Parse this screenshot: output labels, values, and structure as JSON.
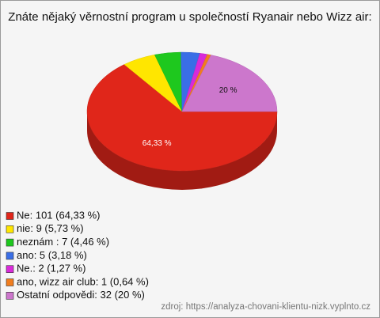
{
  "chart_data": {
    "type": "pie",
    "title": "Znáte nějaký věrnostní program u společností Ryanair nebo Wizz air:",
    "categories": [
      "Ne: 101 (64,33 %)",
      "nie: 9 (5,73 %)",
      "neznám : 7 (4,46 %)",
      "ano: 5 (3,18 %)",
      "Ne.: 2 (1,27 %)",
      "ano, wizz air club: 1 (0,64 %)",
      "Ostatní odpovědi: 32 (20 %)"
    ],
    "values": [
      64.33,
      5.73,
      4.46,
      3.18,
      1.27,
      0.64,
      20
    ],
    "value_labels": [
      "64,33 %",
      null,
      null,
      null,
      null,
      null,
      "20 %"
    ],
    "colors": [
      "#e0261a",
      "#ffe600",
      "#1ec81e",
      "#3a6ee6",
      "#d92ad9",
      "#f07d1e",
      "#cc77cc"
    ],
    "source": "zdroj: https://analyza-chovani-klientu-nizk.vyplnto.cz"
  }
}
